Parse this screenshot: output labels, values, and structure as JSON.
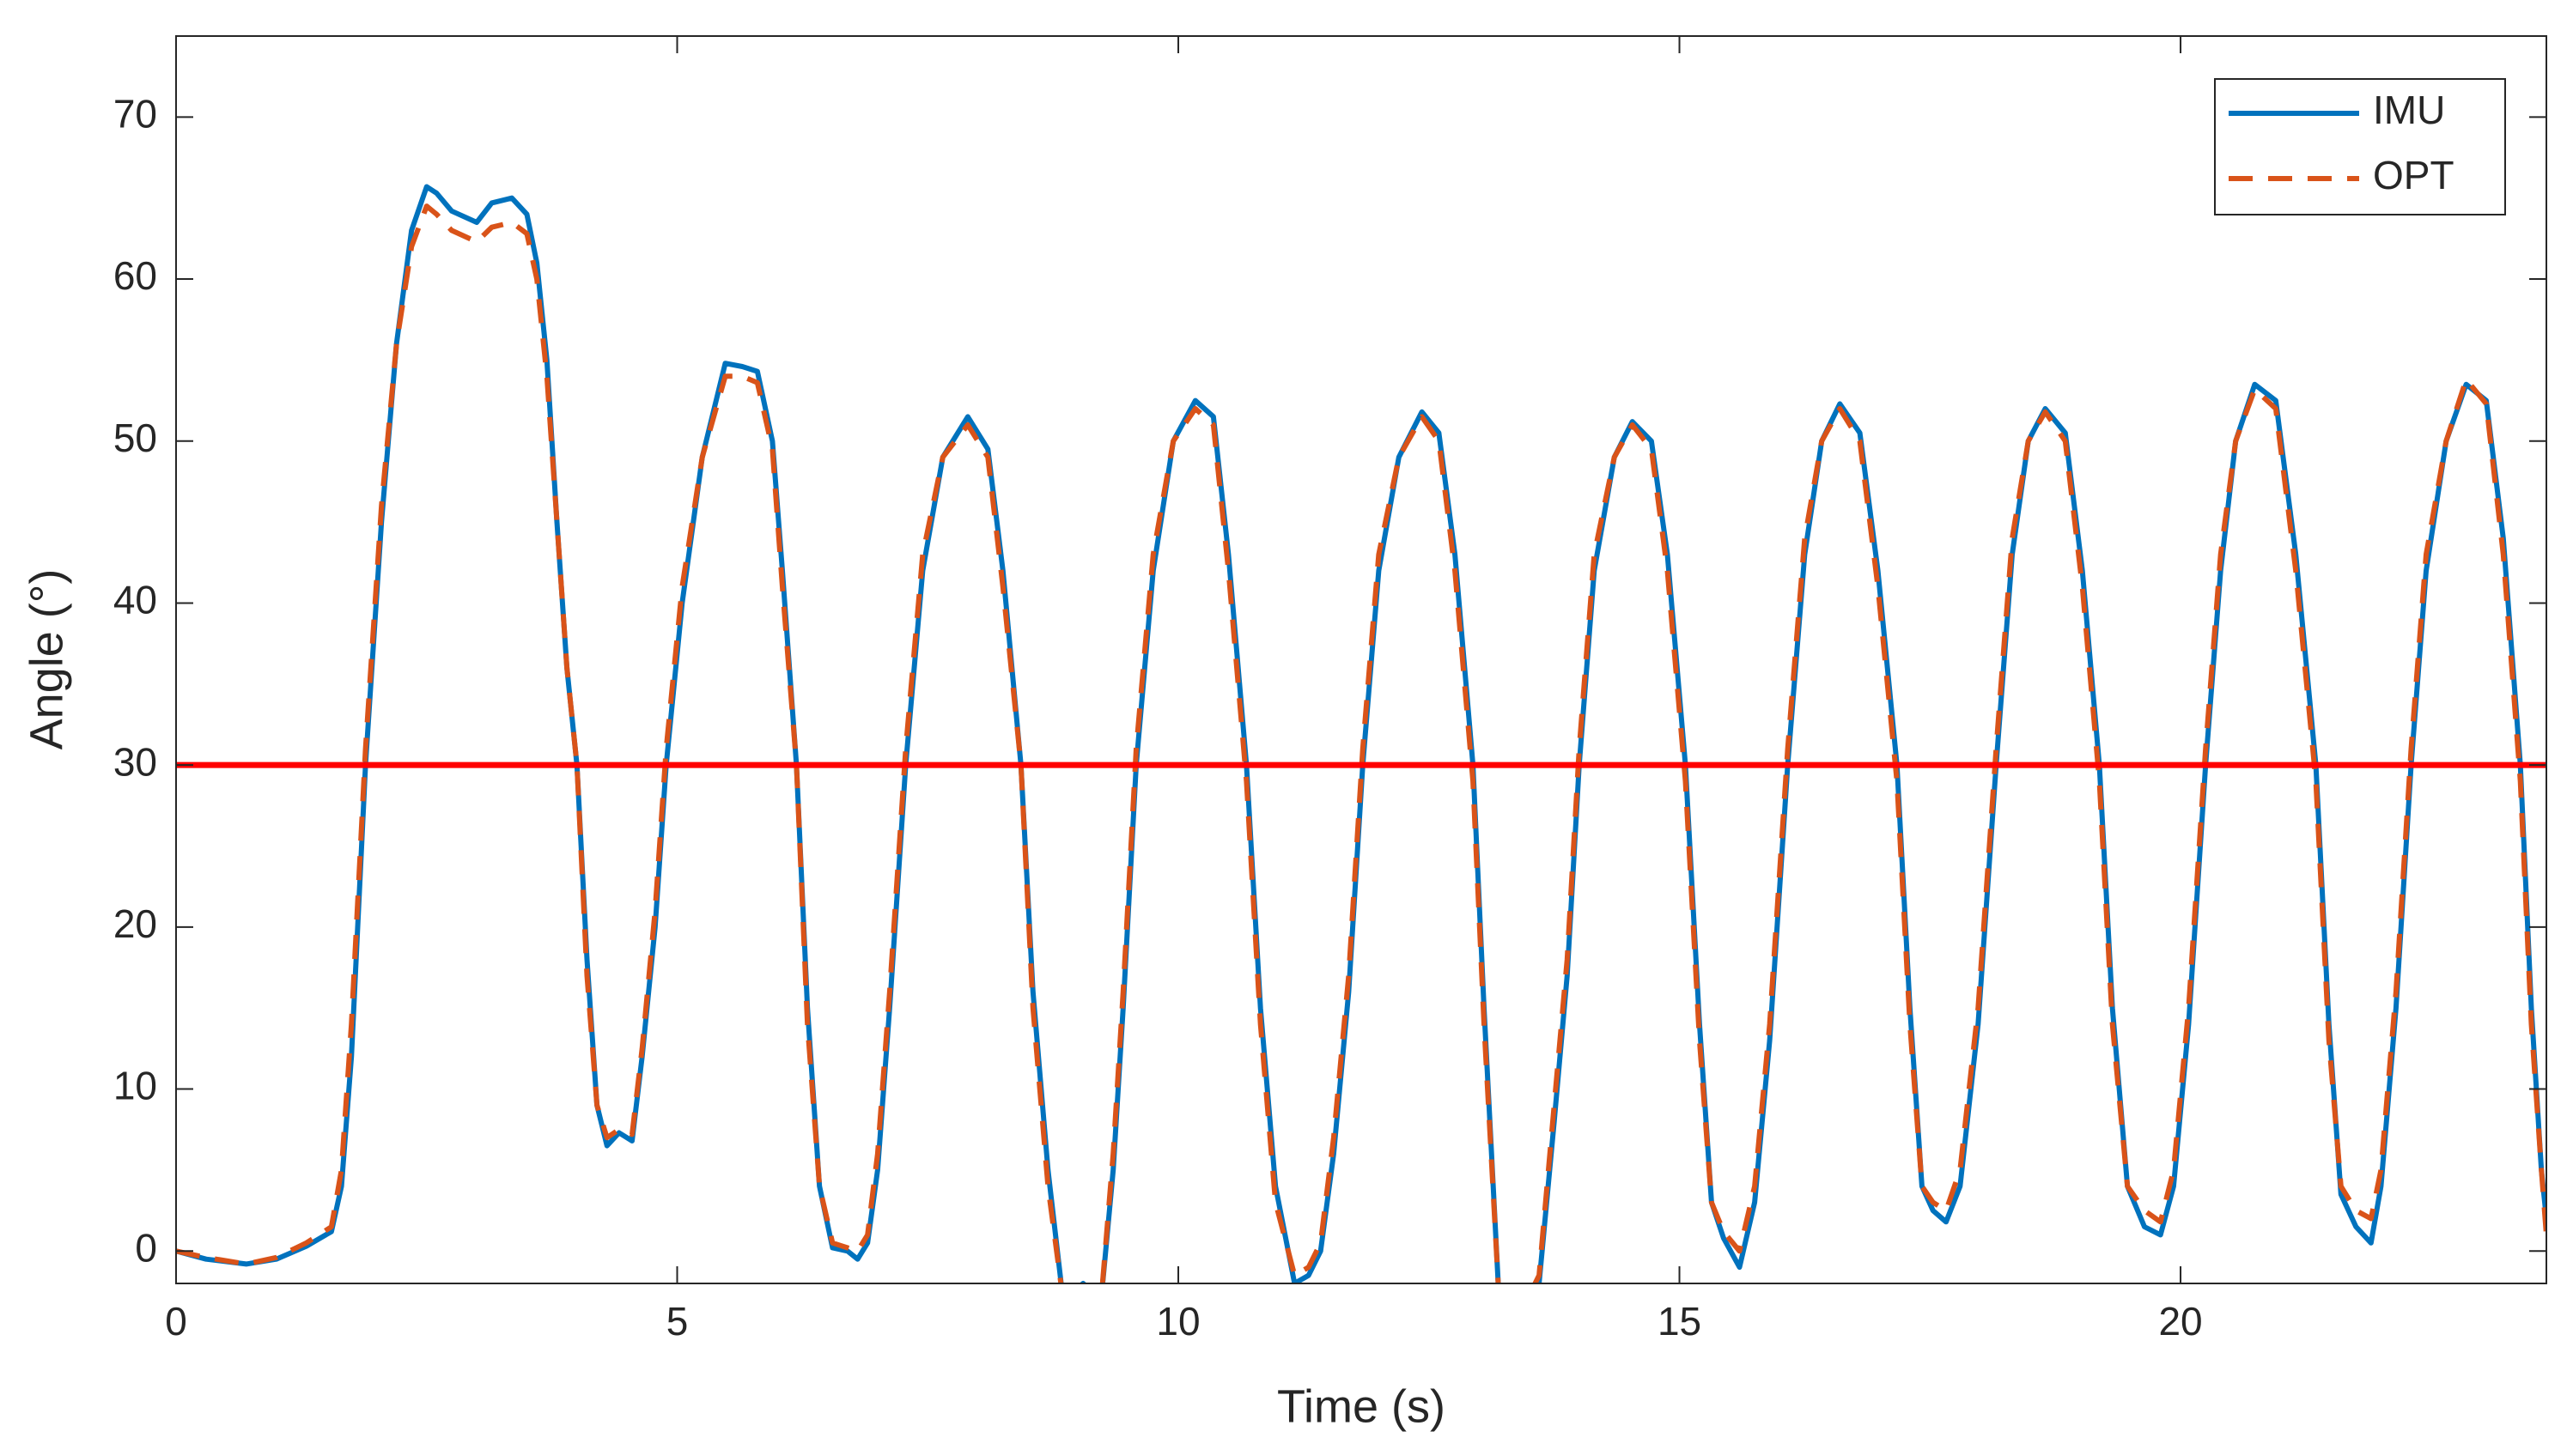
{
  "chart_data": {
    "type": "line",
    "xlabel": "Time (s)",
    "ylabel": "Angle (°)",
    "x": [
      0,
      0.3,
      0.7,
      1.0,
      1.3,
      1.55,
      1.65,
      1.75,
      1.89,
      2.05,
      2.2,
      2.35,
      2.5,
      2.6,
      2.75,
      3.0,
      3.15,
      3.35,
      3.5,
      3.6,
      3.7,
      3.8,
      3.9,
      4.0,
      4.1,
      4.2,
      4.3,
      4.42,
      4.55,
      4.65,
      4.78,
      4.89,
      5.05,
      5.25,
      5.48,
      5.65,
      5.8,
      5.95,
      6.05,
      6.19,
      6.3,
      6.42,
      6.55,
      6.7,
      6.8,
      6.9,
      7.0,
      7.12,
      7.28,
      7.45,
      7.65,
      7.9,
      8.1,
      8.25,
      8.43,
      8.55,
      8.7,
      8.85,
      9.05,
      9.23,
      9.35,
      9.45,
      9.58,
      9.75,
      9.95,
      10.17,
      10.35,
      10.5,
      10.68,
      10.82,
      10.97,
      11.16,
      11.3,
      11.42,
      11.55,
      11.7,
      11.84,
      12.0,
      12.2,
      12.43,
      12.6,
      12.76,
      12.94,
      13.05,
      13.2,
      13.4,
      13.6,
      13.75,
      13.88,
      14.0,
      14.15,
      14.35,
      14.53,
      14.72,
      14.88,
      15.06,
      15.2,
      15.32,
      15.44,
      15.6,
      15.75,
      15.9,
      16.08,
      16.25,
      16.42,
      16.6,
      16.8,
      16.98,
      17.17,
      17.3,
      17.42,
      17.53,
      17.66,
      17.8,
      17.98,
      18.16,
      18.32,
      18.48,
      18.65,
      18.85,
      19.02,
      19.19,
      19.32,
      19.47,
      19.64,
      19.8,
      19.93,
      20.08,
      20.25,
      20.4,
      20.55,
      20.74,
      20.95,
      21.15,
      21.35,
      21.48,
      21.6,
      21.75,
      21.9,
      22.0,
      22.15,
      22.3,
      22.45,
      22.65,
      22.85,
      23.05,
      23.22,
      23.39,
      23.5,
      23.6,
      23.65
    ],
    "series": [
      {
        "name": "IMU",
        "color": "#0072bd",
        "dash": false,
        "values": [
          0,
          -0.5,
          -0.8,
          -0.5,
          0.3,
          1.2,
          4,
          12,
          30,
          45,
          56,
          63,
          65.7,
          65.3,
          64.2,
          63.5,
          64.7,
          65,
          64,
          61,
          55,
          45,
          36,
          30,
          18,
          9,
          6.5,
          7.3,
          6.8,
          12,
          20,
          30,
          40,
          49,
          54.8,
          54.6,
          54.3,
          50,
          42,
          30,
          15,
          4,
          0.2,
          0,
          -0.5,
          0.5,
          5,
          15,
          30,
          42,
          49,
          51.5,
          49.5,
          42,
          30,
          16,
          5,
          -3,
          -2,
          -3,
          5,
          15,
          30,
          42,
          50,
          52.5,
          51.5,
          43,
          30,
          15,
          4,
          -2,
          -1.5,
          0,
          6,
          16,
          30,
          42,
          49,
          51.8,
          50.5,
          43,
          30,
          15,
          -3,
          -4,
          -2,
          8,
          17,
          30,
          42,
          49,
          51.2,
          50,
          43,
          30,
          14,
          3,
          0.8,
          -1,
          3,
          13,
          30,
          43,
          50,
          52.3,
          50.5,
          42,
          30,
          15,
          4,
          2.5,
          1.8,
          4,
          14,
          30,
          43,
          50,
          52,
          50.5,
          42,
          30,
          15,
          4,
          1.5,
          1,
          4,
          14,
          30,
          42,
          50,
          53.5,
          52.5,
          43,
          30,
          14,
          3.5,
          1.5,
          0.5,
          4,
          15,
          30,
          42,
          50,
          53.5,
          52.5,
          44,
          30,
          15,
          5,
          2
        ]
      },
      {
        "name": "OPT",
        "color": "#d95319",
        "dash": true,
        "values": [
          0,
          -0.4,
          -0.8,
          -0.4,
          0.5,
          1.5,
          5,
          14,
          31,
          46,
          56,
          62,
          64.5,
          64,
          63,
          62.3,
          63.2,
          63.5,
          62.8,
          60,
          54,
          45,
          36,
          30,
          17,
          9,
          7,
          7.5,
          7.2,
          12.5,
          21,
          31,
          41,
          49,
          54,
          54,
          53.6,
          49.5,
          41,
          30,
          14,
          4,
          0.5,
          0.2,
          0,
          1,
          6,
          16,
          31,
          43,
          49,
          51,
          49,
          41,
          30,
          15,
          4,
          -3,
          -2.5,
          -3,
          6,
          16,
          31,
          43,
          50,
          52,
          51,
          42,
          29,
          14,
          3,
          -1.5,
          -1,
          0.5,
          7,
          17,
          31,
          43,
          49,
          51.5,
          50,
          42,
          29,
          14,
          -3,
          -4,
          -1.5,
          9,
          18,
          31,
          43,
          49,
          51,
          49.5,
          42,
          29,
          13,
          3,
          1.2,
          0,
          4,
          14,
          31,
          44,
          50,
          52,
          50,
          41,
          29,
          14,
          4,
          3,
          2.5,
          5,
          15,
          31,
          44,
          50,
          51.8,
          50,
          41,
          29,
          14,
          4,
          2.5,
          1.8,
          5,
          15,
          31,
          43,
          50,
          53.2,
          52,
          42,
          29,
          13,
          4,
          2.5,
          2,
          5,
          16,
          31,
          43,
          50,
          53.8,
          52.3,
          43,
          29,
          14,
          5,
          1
        ]
      }
    ],
    "hline": {
      "value": 30,
      "color": "#ff0000"
    },
    "xlim": [
      0,
      23.65
    ],
    "ylim": [
      -2,
      75
    ],
    "xticks": [
      0,
      5,
      10,
      15,
      20
    ],
    "yticks": [
      0,
      10,
      20,
      30,
      40,
      50,
      60,
      70
    ],
    "grid": false,
    "legend": "upper right"
  }
}
